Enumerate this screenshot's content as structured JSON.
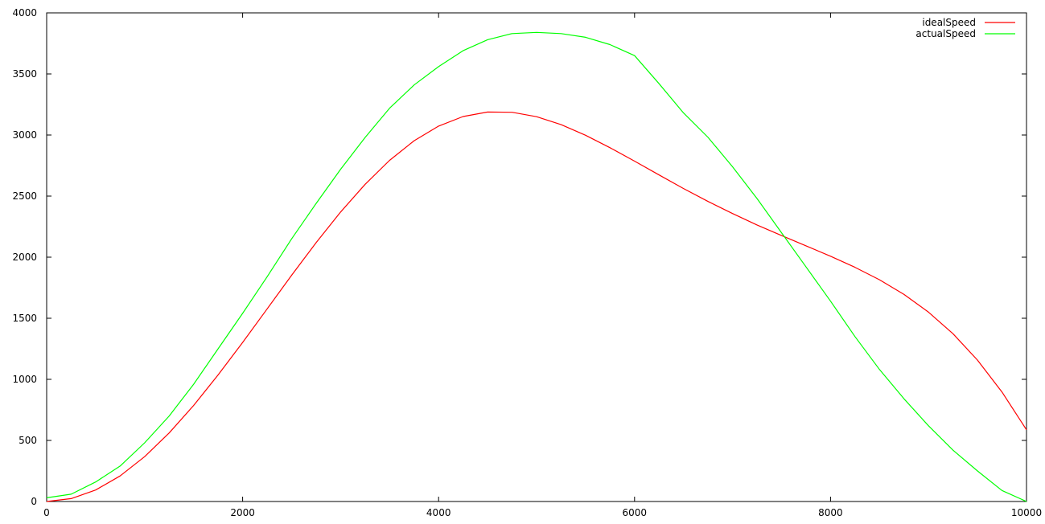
{
  "chart_data": {
    "type": "line",
    "title": "",
    "xlabel": "",
    "ylabel": "",
    "xlim": [
      0,
      10000
    ],
    "ylim": [
      0,
      4000
    ],
    "xticks": [
      0,
      2000,
      4000,
      6000,
      8000,
      10000
    ],
    "yticks": [
      0,
      500,
      1000,
      1500,
      2000,
      2500,
      3000,
      3500,
      4000
    ],
    "xtick_labels": [
      "0",
      "2000",
      "4000",
      "6000",
      "8000",
      "10000"
    ],
    "ytick_labels": [
      "0",
      "500",
      "1000",
      "1500",
      "2000",
      "2500",
      "3000",
      "3500",
      "4000"
    ],
    "grid": false,
    "legend": {
      "position": "top-right"
    },
    "series": [
      {
        "name": "idealSpeed",
        "color": "#ff0000",
        "x": [
          0,
          250,
          500,
          750,
          1000,
          1250,
          1500,
          1750,
          2000,
          2250,
          2500,
          2750,
          3000,
          3250,
          3500,
          3750,
          4000,
          4250,
          4500,
          4750,
          5000,
          5250,
          5500,
          5750,
          6000,
          6250,
          6500,
          6750,
          7000,
          7250,
          7500,
          7750,
          8000,
          8250,
          8500,
          8750,
          9000,
          9250,
          9500,
          9750,
          10000
        ],
        "values": [
          0,
          24,
          94,
          209,
          367,
          561,
          786,
          1036,
          1302,
          1577,
          1852,
          2119,
          2370,
          2597,
          2793,
          2953,
          3073,
          3151,
          3188,
          3186,
          3150,
          3085,
          2998,
          2896,
          2786,
          2673,
          2562,
          2456,
          2357,
          2264,
          2177,
          2093,
          2008,
          1917,
          1815,
          1695,
          1550,
          1373,
          1157,
          897,
          587
        ]
      },
      {
        "name": "actualSpeed",
        "color": "#00ff00",
        "x": [
          0,
          250,
          500,
          750,
          1000,
          1250,
          1500,
          1750,
          2000,
          2250,
          2500,
          2750,
          3000,
          3250,
          3500,
          3750,
          4000,
          4250,
          4500,
          4750,
          5000,
          5250,
          5500,
          5750,
          6000,
          6250,
          6500,
          6750,
          7000,
          7250,
          7500,
          7750,
          8000,
          8250,
          8500,
          8750,
          9000,
          9250,
          9500,
          9750,
          10000
        ],
        "values": [
          30,
          60,
          160,
          290,
          480,
          700,
          960,
          1250,
          1540,
          1840,
          2150,
          2440,
          2720,
          2980,
          3220,
          3410,
          3560,
          3690,
          3780,
          3830,
          3840,
          3830,
          3800,
          3740,
          3650,
          3420,
          3180,
          2980,
          2740,
          2480,
          2200,
          1920,
          1640,
          1350,
          1080,
          840,
          620,
          420,
          250,
          90,
          0
        ]
      }
    ]
  }
}
